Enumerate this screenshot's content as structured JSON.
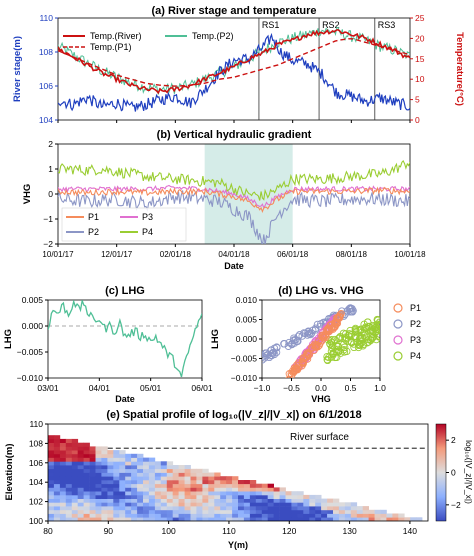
{
  "chart_data": [
    {
      "panel": "a",
      "type": "line",
      "title": "(a) River stage and temperature",
      "ylabel": "River stage(m)",
      "ylabel2": "Temperature(°C)",
      "ylim": [
        104,
        110
      ],
      "ylim2": [
        0,
        25
      ],
      "yticks": [
        104,
        106,
        108,
        110
      ],
      "yticks2": [
        0,
        5,
        10,
        15,
        20,
        25
      ],
      "xlim": [
        0,
        12
      ],
      "x_date_ticks": [
        "10/01/17",
        "12/01/17",
        "02/01/18",
        "04/01/18",
        "06/01/18",
        "08/01/18",
        "10/01/18"
      ],
      "x_tick_positions": [
        0,
        2,
        4,
        6,
        8,
        10,
        12
      ],
      "colors": {
        "stage": "#1f3fbf",
        "river_temp": "#cc1111",
        "p1": "#cc1111",
        "p2": "#4fbf96"
      },
      "legend": [
        "Temp.(River)",
        "Temp.(P2)",
        "Temp.(P1)"
      ],
      "annotations": [
        {
          "label": "RS1",
          "x": 6.85
        },
        {
          "label": "RS2",
          "x": 8.9
        },
        {
          "label": "RS3",
          "x": 10.8
        }
      ],
      "series": [
        {
          "name": "River stage",
          "axis": "left",
          "x": [
            0,
            0.5,
            1,
            1.5,
            2,
            2.5,
            3,
            3.5,
            4,
            4.5,
            5,
            5.5,
            6,
            6.5,
            7,
            7.3,
            7.6,
            8,
            8.5,
            9,
            9.5,
            10,
            10.5,
            11,
            11.5,
            12
          ],
          "values": [
            105.2,
            104.9,
            105.3,
            104.8,
            105.0,
            104.7,
            104.9,
            105.2,
            105.4,
            105.0,
            105.8,
            106.8,
            107.5,
            107.6,
            108.3,
            108.9,
            108.0,
            107.5,
            107.3,
            106.7,
            105.6,
            105.4,
            105.1,
            105.3,
            105.0,
            104.8
          ]
        },
        {
          "name": "Temp.(River)",
          "axis": "right",
          "x": [
            0,
            0.5,
            1,
            1.5,
            2,
            2.5,
            3,
            3.5,
            4,
            4.5,
            5,
            5.5,
            6,
            6.5,
            7,
            7.5,
            8,
            8.5,
            9,
            9.5,
            10,
            10.5,
            11,
            11.5,
            12
          ],
          "values": [
            17.5,
            15.5,
            13.5,
            11.5,
            10,
            8.5,
            7.5,
            7,
            7.5,
            8.5,
            10,
            11.5,
            13,
            15,
            16.5,
            18.5,
            19.5,
            21,
            21.5,
            22,
            21,
            20,
            18.5,
            17,
            15
          ]
        },
        {
          "name": "Temp.(P1)",
          "axis": "right",
          "x": [
            0,
            0.5,
            1,
            1.5,
            2,
            2.5,
            3,
            3.5,
            4,
            4.5,
            5,
            5.5,
            6,
            6.5,
            7,
            7.5,
            8,
            8.5,
            9,
            9.5,
            10,
            10.5,
            11,
            11.5,
            12
          ],
          "values": [
            17,
            15.5,
            14,
            12.5,
            11,
            10,
            9,
            8.5,
            8.3,
            8.5,
            9,
            10,
            10.5,
            11.5,
            12.5,
            13.5,
            15,
            16.5,
            18,
            19.5,
            20,
            19,
            18,
            17,
            16
          ]
        },
        {
          "name": "Temp.(P2)",
          "axis": "right",
          "x": [
            0,
            0.5,
            1,
            1.5,
            2,
            2.5,
            3,
            3.5,
            4,
            4.5,
            5,
            5.5,
            6,
            6.5,
            7,
            7.5,
            8,
            8.5,
            9,
            9.5,
            10,
            10.5,
            11,
            11.5,
            12
          ],
          "values": [
            18,
            16,
            14,
            12,
            10.5,
            9,
            8,
            7.5,
            7.8,
            8.5,
            10,
            11.5,
            13,
            15,
            17,
            19,
            20,
            21,
            22,
            21.5,
            20.5,
            19.5,
            18,
            17,
            15.5
          ]
        }
      ]
    },
    {
      "panel": "b",
      "type": "line",
      "title": "(b) Vertical hydraulic gradient",
      "ylabel": "VHG",
      "xlabel": "Date",
      "ylim": [
        -2,
        2
      ],
      "yticks": [
        -2,
        -1,
        0,
        1,
        2
      ],
      "xlim": [
        0,
        12
      ],
      "x_date_ticks": [
        "10/01/17",
        "12/01/17",
        "02/01/18",
        "04/01/18",
        "06/01/18",
        "08/01/18",
        "10/01/18"
      ],
      "x_tick_positions": [
        0,
        2,
        4,
        6,
        8,
        10,
        12
      ],
      "shaded_range": [
        5,
        8
      ],
      "colors": {
        "p1": "#f58c5c",
        "p2": "#8c96c6",
        "p3": "#e070d0",
        "p4": "#9acd32",
        "shade": "#d5ece8"
      },
      "legend": [
        "P1",
        "P2",
        "P3",
        "P4"
      ],
      "series": [
        {
          "name": "P1",
          "x": [
            0,
            1,
            2,
            3,
            4,
            5,
            5.5,
            6,
            6.5,
            7,
            7.5,
            8,
            9,
            10,
            11,
            12
          ],
          "values": [
            0.1,
            0.05,
            0.1,
            0.05,
            0.1,
            0.1,
            0,
            -0.1,
            -0.3,
            -0.6,
            -0.2,
            0.1,
            0.1,
            0.1,
            0.15,
            0.1
          ]
        },
        {
          "name": "P2",
          "x": [
            0,
            1,
            2,
            3,
            4,
            5,
            5.5,
            6,
            6.5,
            7,
            7.5,
            8,
            9,
            10,
            11,
            12
          ],
          "values": [
            -0.2,
            -0.3,
            -0.2,
            -0.4,
            -0.1,
            -0.2,
            -0.3,
            -0.6,
            -0.9,
            -1.9,
            -0.8,
            -0.2,
            -0.3,
            -0.2,
            -0.2,
            -0.3
          ]
        },
        {
          "name": "P3",
          "x": [
            0,
            1,
            2,
            3,
            4,
            5,
            5.5,
            6,
            6.5,
            7,
            7.5,
            8,
            9,
            10,
            11,
            12
          ],
          "values": [
            0.2,
            0.2,
            0.2,
            0.2,
            0.25,
            0.2,
            0.1,
            0,
            -0.2,
            -0.5,
            -0.1,
            0.2,
            0.2,
            0.2,
            0.2,
            0.2
          ]
        },
        {
          "name": "P4",
          "x": [
            0,
            0.5,
            1,
            1.5,
            2,
            3,
            4,
            5,
            5.5,
            6,
            6.5,
            7,
            7.5,
            8,
            9,
            10,
            11,
            11.5,
            12
          ],
          "values": [
            1.0,
            1.0,
            0.95,
            1.0,
            0.9,
            0.7,
            0.6,
            0.5,
            0.45,
            0.2,
            0.0,
            -0.1,
            0.2,
            0.6,
            0.6,
            0.7,
            0.8,
            1.0,
            1.3
          ]
        }
      ]
    },
    {
      "panel": "c",
      "type": "line",
      "title": "(c) LHG",
      "ylabel": "LHG",
      "xlabel": "Date",
      "ylim": [
        -0.01,
        0.005
      ],
      "yticks": [
        -0.01,
        -0.005,
        0.0,
        0.005
      ],
      "ytick_labels": [
        "−0.010",
        "−0.005",
        "0.000",
        "0.005"
      ],
      "xlim": [
        0,
        3
      ],
      "x_date_ticks": [
        "03/01",
        "04/01",
        "05/01",
        "06/01"
      ],
      "x_tick_positions": [
        0,
        1,
        2,
        3
      ],
      "colors": {
        "line": "#4fbf96",
        "zero": "#aaaaaa"
      },
      "series": [
        {
          "name": "LHG",
          "x": [
            0,
            0.1,
            0.2,
            0.3,
            0.4,
            0.5,
            0.6,
            0.7,
            0.8,
            0.9,
            1.0,
            1.1,
            1.2,
            1.3,
            1.4,
            1.5,
            1.6,
            1.7,
            1.8,
            1.9,
            2.0,
            2.1,
            2.2,
            2.3,
            2.4,
            2.5,
            2.6,
            2.7,
            2.8,
            2.9,
            3.0
          ],
          "values": [
            0.0,
            0.003,
            0.0025,
            0.004,
            0.002,
            0.005,
            0.003,
            0.0045,
            0.002,
            0.001,
            0.0015,
            -0.0005,
            0.0,
            -0.001,
            0.0005,
            -0.002,
            -0.0015,
            -0.001,
            -0.002,
            -0.0015,
            -0.003,
            -0.002,
            -0.0035,
            -0.005,
            -0.006,
            -0.0075,
            -0.01,
            -0.006,
            -0.003,
            0.0,
            0.002
          ]
        }
      ]
    },
    {
      "panel": "d",
      "type": "scatter",
      "title": "(d) LHG vs. VHG",
      "ylabel": "LHG",
      "xlabel": "VHG",
      "xlim": [
        -1.0,
        1.0
      ],
      "ylim": [
        -0.01,
        0.01
      ],
      "xticks": [
        -1.0,
        -0.5,
        0.0,
        0.5,
        1.0
      ],
      "yticks": [
        -0.01,
        -0.005,
        0.0,
        0.005,
        0.01
      ],
      "ytick_labels": [
        "−0.010",
        "−0.005",
        "0.000",
        "0.005",
        "0.010"
      ],
      "xtick_labels": [
        "−1.0",
        "−0.5",
        "0.0",
        "0.5",
        "1.0"
      ],
      "colors": {
        "p1": "#f58c5c",
        "p2": "#8c96c6",
        "p3": "#e070d0",
        "p4": "#9acd32"
      },
      "legend": [
        "P1",
        "P2",
        "P3",
        "P4"
      ],
      "series": [
        {
          "name": "P1",
          "x_range": [
            -0.55,
            0.35
          ],
          "y_range": [
            -0.01,
            0.006
          ]
        },
        {
          "name": "P2",
          "x_range": [
            -1.0,
            0.55
          ],
          "y_range": [
            -0.005,
            0.008
          ]
        },
        {
          "name": "P3",
          "x_range": [
            -0.45,
            0.25
          ],
          "y_range": [
            -0.008,
            0.005
          ]
        },
        {
          "name": "P4",
          "x_range": [
            0.1,
            1.0
          ],
          "y_range": [
            -0.003,
            0.003
          ]
        }
      ]
    },
    {
      "panel": "e",
      "type": "heatmap",
      "title": "(e) Spatial profile of log₁₀(|V_z|/|V_x|) on 6/1/2018",
      "ylabel": "Elevation(m)",
      "xlabel": "Y(m)",
      "colorbar_label": "log₁₀(|V_z|/|V_x|)",
      "xlim": [
        80,
        143
      ],
      "ylim": [
        100,
        110
      ],
      "xticks": [
        80,
        90,
        100,
        110,
        120,
        130,
        140
      ],
      "yticks": [
        100,
        102,
        104,
        106,
        108,
        110
      ],
      "clim": [
        -3,
        3
      ],
      "cticks": [
        2,
        0,
        -2
      ],
      "annotation": "River surface",
      "river_surface_elevation": 107.5,
      "colors": {
        "low": "#3a4cc0",
        "mid": "#dddddd",
        "high": "#b40426"
      }
    }
  ]
}
